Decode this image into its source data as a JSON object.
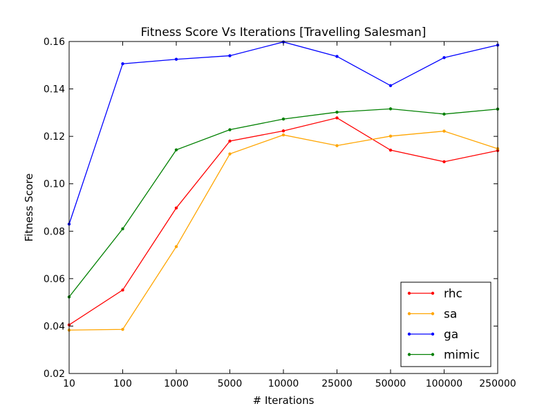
{
  "chart_data": {
    "type": "line",
    "title": "Fitness Score Vs Iterations [Travelling Salesman]",
    "xlabel": "# Iterations",
    "ylabel": "Fitness Score",
    "categories": [
      "10",
      "100",
      "1000",
      "5000",
      "10000",
      "25000",
      "50000",
      "100000",
      "250000"
    ],
    "ylim": [
      0.02,
      0.16
    ],
    "yticks": [
      "0.02",
      "0.04",
      "0.06",
      "0.08",
      "0.10",
      "0.12",
      "0.14",
      "0.16"
    ],
    "grid": false,
    "legend_position": "lower-right",
    "series": [
      {
        "name": "rhc",
        "color": "#ff0000",
        "values": [
          0.0405,
          0.0552,
          0.0898,
          0.118,
          0.1223,
          0.1278,
          0.1142,
          0.1093,
          0.114
        ]
      },
      {
        "name": "sa",
        "color": "#ffa500",
        "values": [
          0.0383,
          0.0386,
          0.0735,
          0.1126,
          0.1206,
          0.1161,
          0.1201,
          0.1222,
          0.1148
        ]
      },
      {
        "name": "ga",
        "color": "#0000ff",
        "values": [
          0.083,
          0.1506,
          0.1525,
          0.154,
          0.1598,
          0.1537,
          0.1414,
          0.1532,
          0.1585
        ]
      },
      {
        "name": "mimic",
        "color": "#008000",
        "values": [
          0.0523,
          0.081,
          0.1143,
          0.1228,
          0.1273,
          0.1302,
          0.1316,
          0.1294,
          0.1315
        ]
      }
    ]
  }
}
